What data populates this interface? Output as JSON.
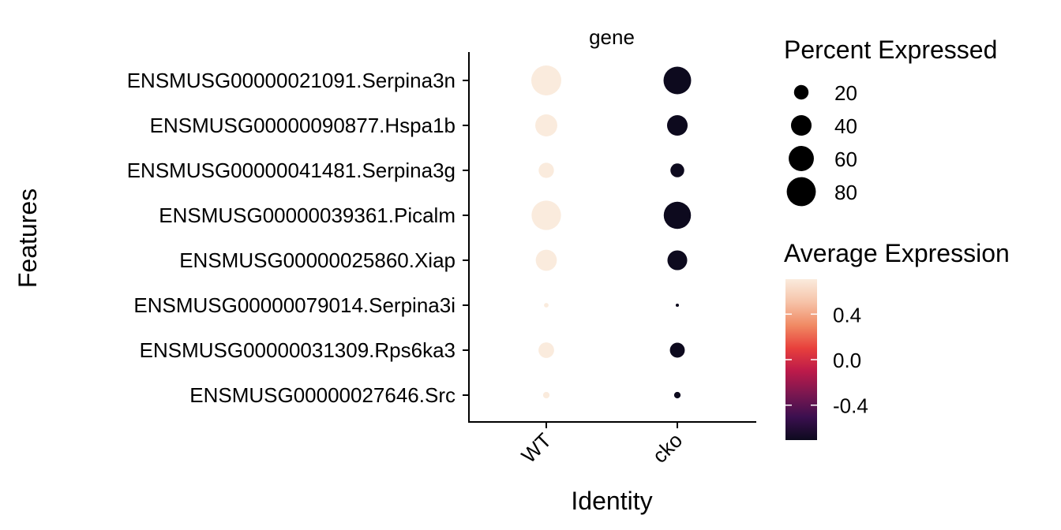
{
  "chart_data": {
    "type": "scatter",
    "subtype": "dot_plot",
    "panel_title": "gene",
    "xlabel": "Identity",
    "ylabel": "Features",
    "x_categories": [
      "WT",
      "cko"
    ],
    "y_categories": [
      "ENSMUSG00000021091.Serpina3n",
      "ENSMUSG00000090877.Hspa1b",
      "ENSMUSG00000041481.Serpina3g",
      "ENSMUSG00000039361.Picalm",
      "ENSMUSG00000025860.Xiap",
      "ENSMUSG00000079014.Serpina3i",
      "ENSMUSG00000031309.Rps6ka3",
      "ENSMUSG00000027646.Src"
    ],
    "points": [
      {
        "identity": "WT",
        "feature": "ENSMUSG00000021091.Serpina3n",
        "pct_expressed": 85,
        "avg_expression": 0.707
      },
      {
        "identity": "cko",
        "feature": "ENSMUSG00000021091.Serpina3n",
        "pct_expressed": 72,
        "avg_expression": -0.707
      },
      {
        "identity": "WT",
        "feature": "ENSMUSG00000090877.Hspa1b",
        "pct_expressed": 46,
        "avg_expression": 0.707
      },
      {
        "identity": "cko",
        "feature": "ENSMUSG00000090877.Hspa1b",
        "pct_expressed": 40,
        "avg_expression": -0.707
      },
      {
        "identity": "WT",
        "feature": "ENSMUSG00000041481.Serpina3g",
        "pct_expressed": 22,
        "avg_expression": 0.707
      },
      {
        "identity": "cko",
        "feature": "ENSMUSG00000041481.Serpina3g",
        "pct_expressed": 18,
        "avg_expression": -0.707
      },
      {
        "identity": "WT",
        "feature": "ENSMUSG00000039361.Picalm",
        "pct_expressed": 82,
        "avg_expression": 0.707
      },
      {
        "identity": "cko",
        "feature": "ENSMUSG00000039361.Picalm",
        "pct_expressed": 70,
        "avg_expression": -0.707
      },
      {
        "identity": "WT",
        "feature": "ENSMUSG00000025860.Xiap",
        "pct_expressed": 42,
        "avg_expression": 0.707
      },
      {
        "identity": "cko",
        "feature": "ENSMUSG00000025860.Xiap",
        "pct_expressed": 37,
        "avg_expression": -0.707
      },
      {
        "identity": "WT",
        "feature": "ENSMUSG00000079014.Serpina3i",
        "pct_expressed": 2,
        "avg_expression": 0.707
      },
      {
        "identity": "cko",
        "feature": "ENSMUSG00000079014.Serpina3i",
        "pct_expressed": 1,
        "avg_expression": -0.707
      },
      {
        "identity": "WT",
        "feature": "ENSMUSG00000031309.Rps6ka3",
        "pct_expressed": 23,
        "avg_expression": 0.707
      },
      {
        "identity": "cko",
        "feature": "ENSMUSG00000031309.Rps6ka3",
        "pct_expressed": 21,
        "avg_expression": -0.707
      },
      {
        "identity": "WT",
        "feature": "ENSMUSG00000027646.Src",
        "pct_expressed": 4,
        "avg_expression": 0.707
      },
      {
        "identity": "cko",
        "feature": "ENSMUSG00000027646.Src",
        "pct_expressed": 4,
        "avg_expression": -0.707
      }
    ],
    "size_legend": {
      "title": "Percent Expressed",
      "breaks": [
        20,
        40,
        60,
        80
      ]
    },
    "color_legend": {
      "title": "Average Expression",
      "breaks": [
        0.4,
        0.0,
        -0.4
      ],
      "break_labels": [
        "0.4",
        "0.0",
        "-0.4"
      ],
      "range": [
        -0.707,
        0.707
      ],
      "colors": [
        "#0d0a1e",
        "#3b0f4f",
        "#7a1750",
        "#bc1a4a",
        "#e8403c",
        "#f08a64",
        "#f6c3a8",
        "#faebdd"
      ]
    },
    "grid": false,
    "legend_position": "right"
  }
}
